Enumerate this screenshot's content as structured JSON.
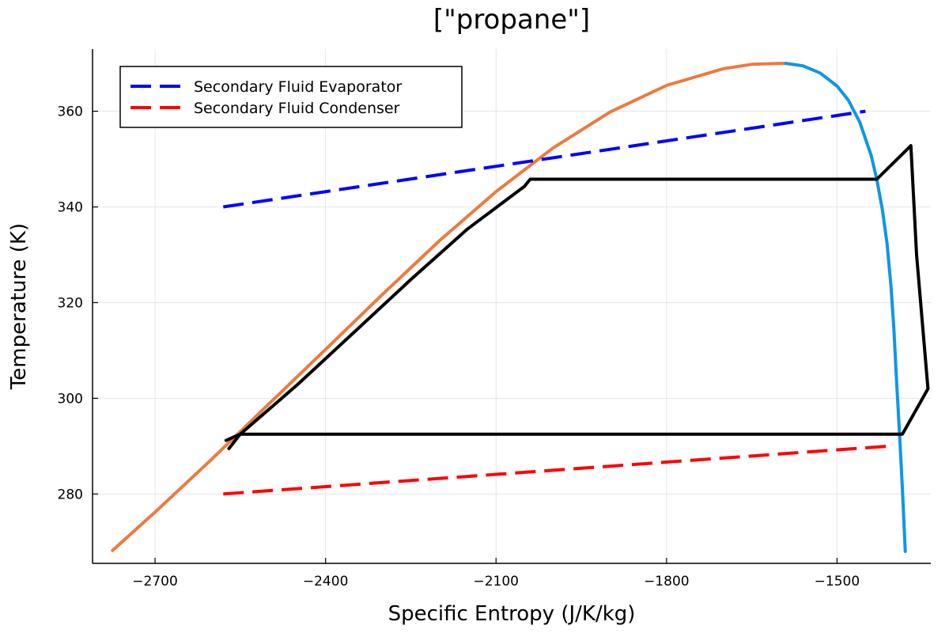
{
  "chart_data": {
    "type": "line",
    "title": "[\"propane\"]",
    "xlabel": "Specific Entropy (J/K/kg)",
    "ylabel": "Temperature (K)",
    "xlim": [
      -2810,
      -1335
    ],
    "ylim": [
      265.5,
      373
    ],
    "xticks": [
      -2700,
      -2400,
      -2100,
      -1800,
      -1500
    ],
    "xtick_labels": [
      "−2700",
      "−2400",
      "−2100",
      "−1800",
      "−1500"
    ],
    "yticks": [
      280,
      300,
      320,
      340,
      360
    ],
    "ytick_labels": [
      "280",
      "300",
      "320",
      "340",
      "360"
    ],
    "grid": true,
    "legend_position": "top-left",
    "series": [
      {
        "name": "Secondary Fluid Evaporator",
        "color": "#0000ff",
        "dashed": true,
        "in_legend": true,
        "x": [
          -2580,
          -1450
        ],
        "y": [
          340,
          360
        ]
      },
      {
        "name": "Secondary Fluid Condenser",
        "color": "#ff0000",
        "dashed": true,
        "in_legend": true,
        "x": [
          -2580,
          -1410
        ],
        "y": [
          280,
          290
        ]
      },
      {
        "color": "#ec7a3e",
        "dashed": false,
        "in_legend": false,
        "x": [
          -2775,
          -2700,
          -2600,
          -2500,
          -2400,
          -2300,
          -2200,
          -2100,
          -2000,
          -1900,
          -1800,
          -1700,
          -1650,
          -1600,
          -1590
        ],
        "y": [
          268.2,
          276.2,
          287.3,
          298.8,
          310.2,
          321.7,
          332.9,
          343.2,
          352.3,
          359.8,
          365.4,
          368.9,
          369.8,
          370.0,
          370.0
        ]
      },
      {
        "color": "#0d96e8",
        "dashed": false,
        "in_legend": false,
        "x": [
          -1590,
          -1560,
          -1530,
          -1500,
          -1480,
          -1460,
          -1440,
          -1430,
          -1420,
          -1412,
          -1405,
          -1400,
          -1395,
          -1390,
          -1385,
          -1380
        ],
        "y": [
          370.0,
          369.5,
          368.0,
          365.3,
          362.3,
          357.7,
          350.8,
          345.8,
          339.3,
          332.3,
          323.3,
          314.5,
          303.0,
          292.5,
          281.0,
          268.0
        ]
      },
      {
        "color": "#000000",
        "dashed": false,
        "in_legend": false,
        "x": [
          -2570,
          -2550,
          -2450,
          -2350,
          -2250,
          -2150,
          -2050,
          -2040,
          -1430,
          -1370,
          -1360,
          -1340,
          -1385,
          -2550,
          -2575
        ],
        "y": [
          289.5,
          292.5,
          302.8,
          313.8,
          324.8,
          335.4,
          344.3,
          345.8,
          345.8,
          352.8,
          330,
          302,
          292.5,
          292.5,
          291.2
        ]
      }
    ]
  }
}
